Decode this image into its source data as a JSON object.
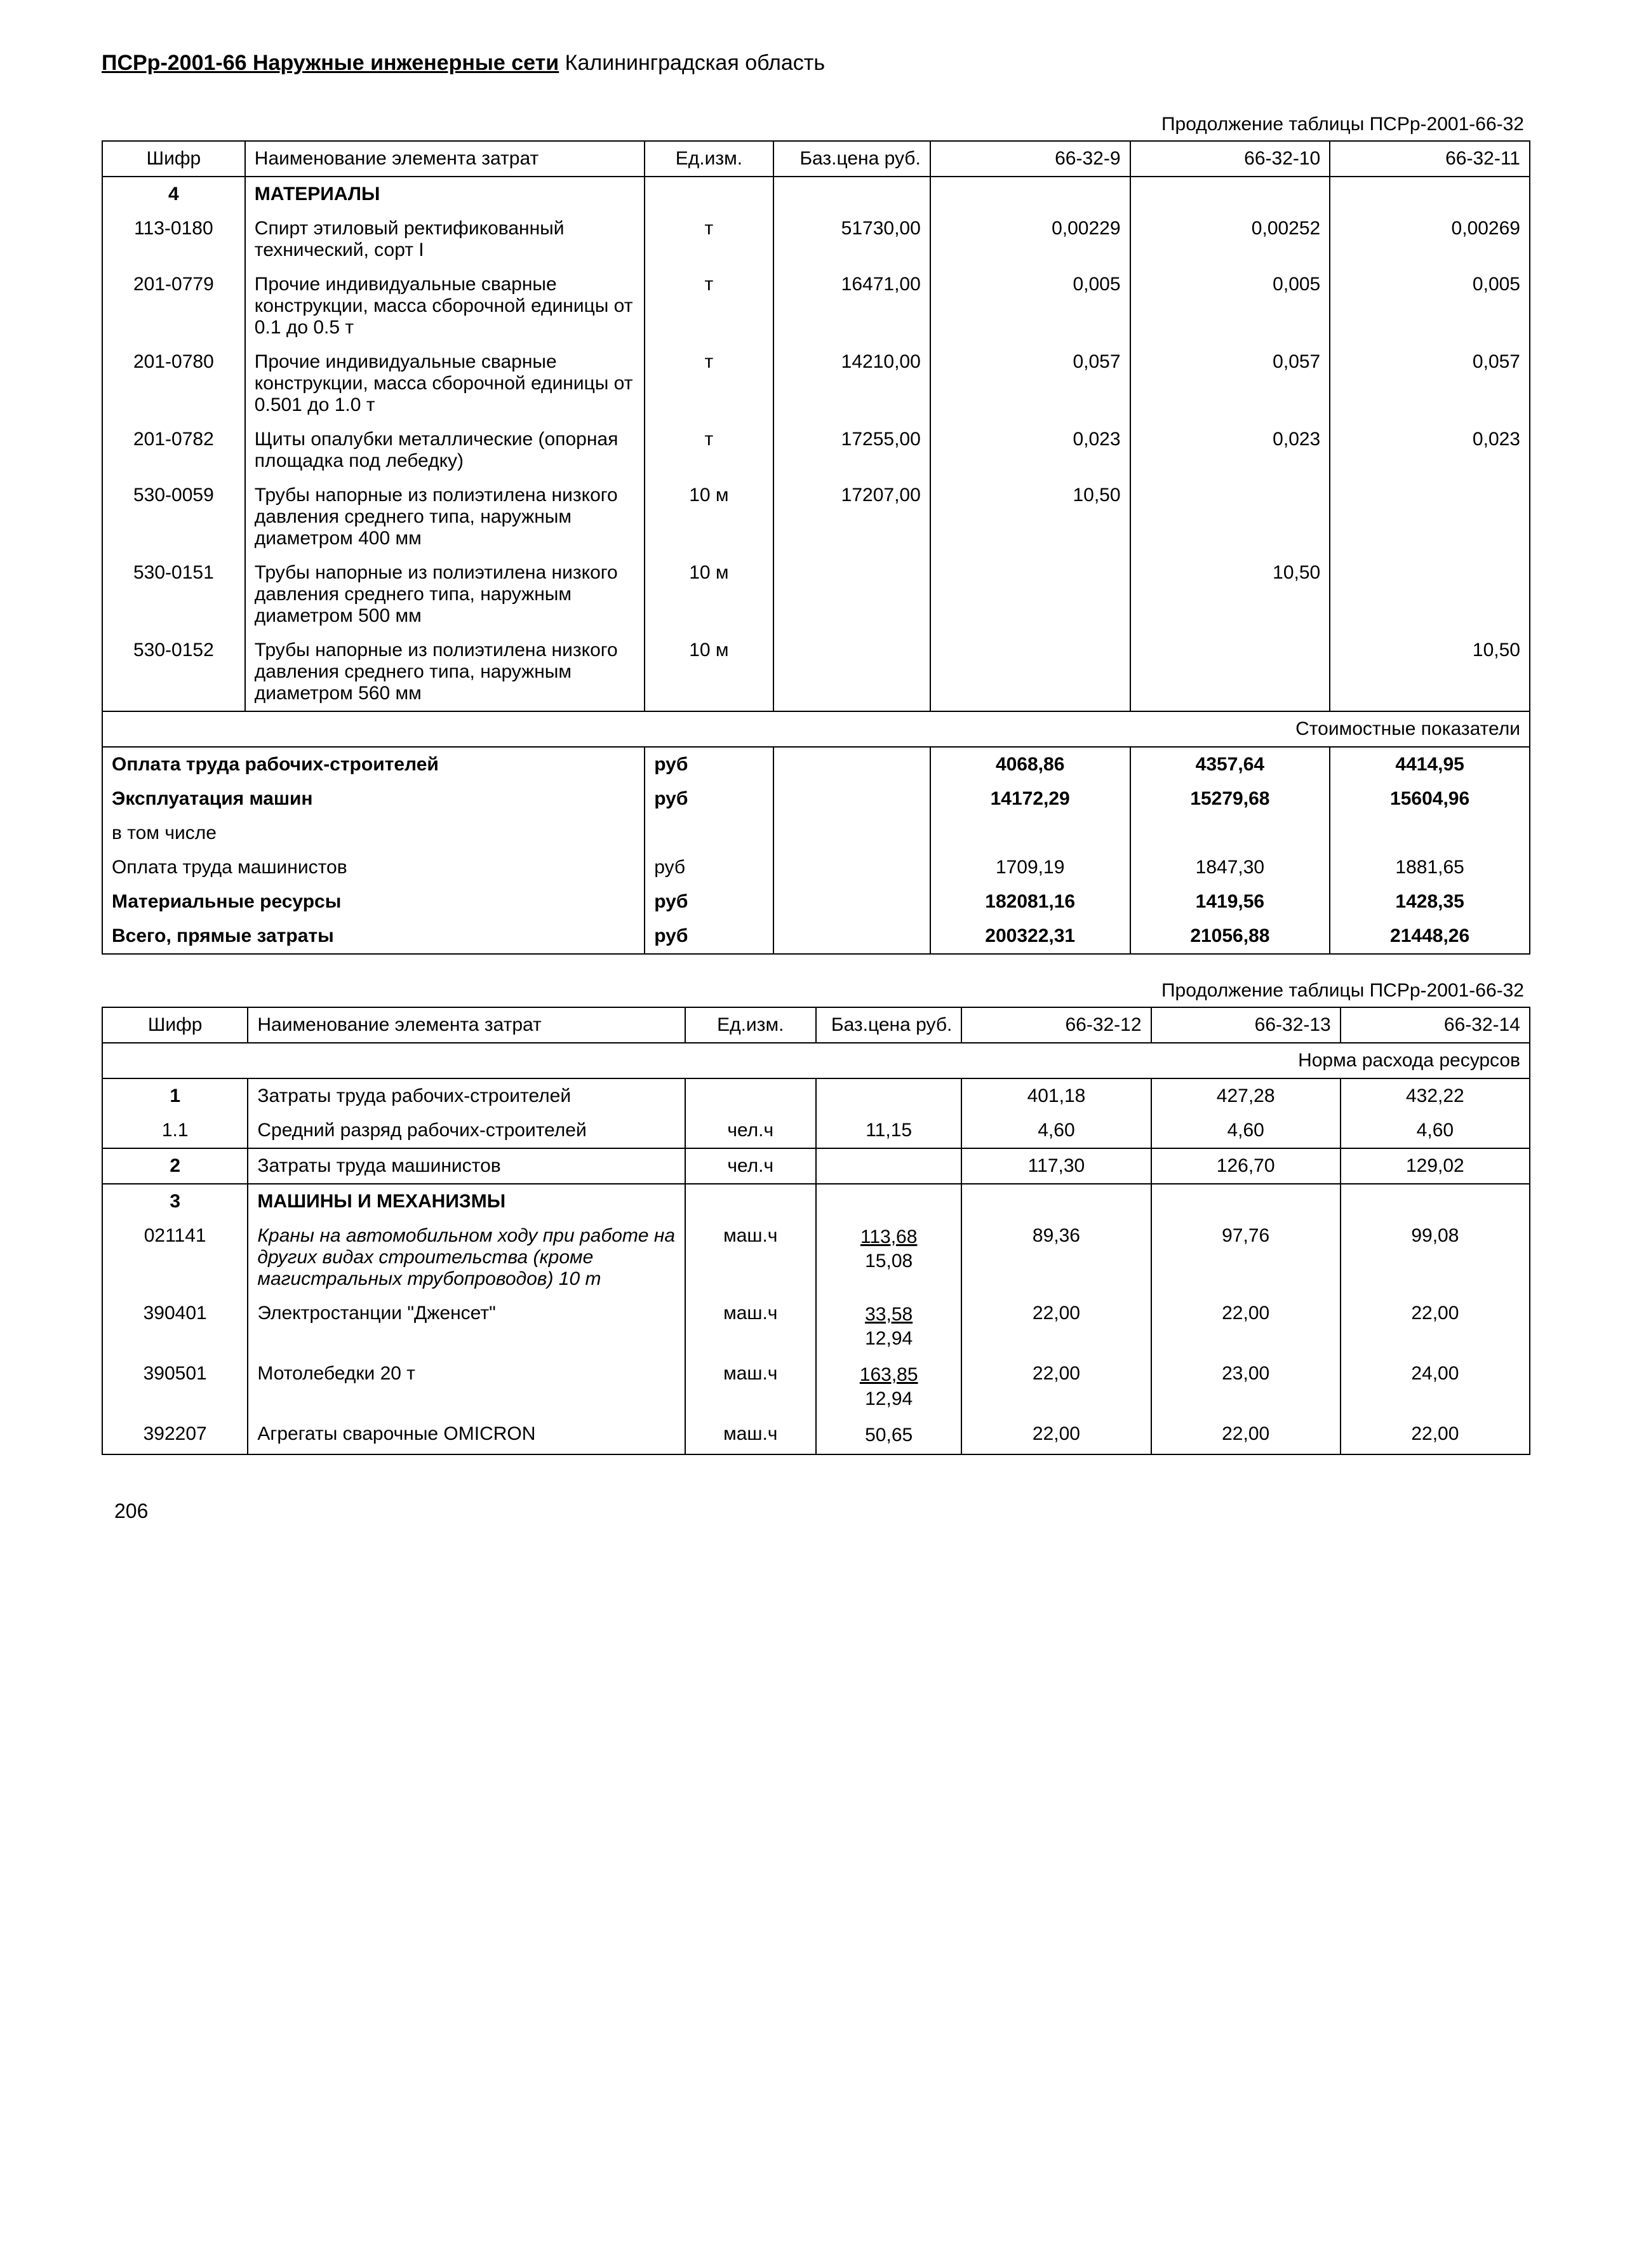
{
  "header": {
    "code": "ПСРр-2001-66 Наружные инженерные сети",
    "region": " Калининградская область"
  },
  "table1": {
    "continuation": "Продолжение таблицы ПСРр-2001-66-32",
    "headers": {
      "code": "Шифр",
      "name": "Наименование элемента затрат",
      "unit": "Ед.изм.",
      "price": "Баз.цена руб.",
      "c1": "66-32-9",
      "c2": "66-32-10",
      "c3": "66-32-11"
    },
    "section": {
      "num": "4",
      "title": "МАТЕРИАЛЫ"
    },
    "rows": [
      {
        "code": "113-0180",
        "name": "Спирт этиловый ректификованный технический, сорт I",
        "unit": "т",
        "price": "51730,00",
        "v1": "0,00229",
        "v2": "0,00252",
        "v3": "0,00269"
      },
      {
        "code": "201-0779",
        "name": "Прочие индивидуальные сварные конструкции, масса сборочной единицы от 0.1 до 0.5 т",
        "unit": "т",
        "price": "16471,00",
        "v1": "0,005",
        "v2": "0,005",
        "v3": "0,005"
      },
      {
        "code": "201-0780",
        "name": "Прочие индивидуальные сварные конструкции, масса сборочной единицы от 0.501 до 1.0 т",
        "unit": "т",
        "price": "14210,00",
        "v1": "0,057",
        "v2": "0,057",
        "v3": "0,057"
      },
      {
        "code": "201-0782",
        "name": "Щиты опалубки металлические (опорная площадка под лебедку)",
        "unit": "т",
        "price": "17255,00",
        "v1": "0,023",
        "v2": "0,023",
        "v3": "0,023"
      },
      {
        "code": "530-0059",
        "name": "Трубы напорные из полиэтилена низкого давления среднего типа, наружным диаметром 400 мм",
        "unit": "10 м",
        "price": "17207,00",
        "v1": "10,50",
        "v2": "",
        "v3": ""
      },
      {
        "code": "530-0151",
        "name": "Трубы напорные из полиэтилена низкого давления среднего типа, наружным диаметром 500 мм",
        "unit": "10 м",
        "price": "",
        "v1": "",
        "v2": "10,50",
        "v3": ""
      },
      {
        "code": "530-0152",
        "name": "Трубы напорные из полиэтилена низкого давления среднего типа, наружным диаметром 560 мм",
        "unit": "10 м",
        "price": "",
        "v1": "",
        "v2": "",
        "v3": "10,50"
      }
    ],
    "costHeader": "Стоимостные показатели",
    "summary": [
      {
        "label": "Оплата труда рабочих-строителей",
        "unit": "руб",
        "v1": "4068,86",
        "v2": "4357,64",
        "v3": "4414,95",
        "bold": true
      },
      {
        "label": "Эксплуатация машин",
        "unit": "руб",
        "v1": "14172,29",
        "v2": "15279,68",
        "v3": "15604,96",
        "bold": true
      },
      {
        "label": "в том числе",
        "unit": "",
        "v1": "",
        "v2": "",
        "v3": "",
        "bold": false
      },
      {
        "label": "Оплата труда машинистов",
        "unit": "руб",
        "v1": "1709,19",
        "v2": "1847,30",
        "v3": "1881,65",
        "bold": false
      },
      {
        "label": "Материальные ресурсы",
        "unit": "руб",
        "v1": "182081,16",
        "v2": "1419,56",
        "v3": "1428,35",
        "bold": true
      },
      {
        "label": "Всего, прямые затраты",
        "unit": "руб",
        "v1": "200322,31",
        "v2": "21056,88",
        "v3": "21448,26",
        "bold": true
      }
    ]
  },
  "table2": {
    "continuation": "Продолжение таблицы ПСРр-2001-66-32",
    "headers": {
      "code": "Шифр",
      "name": "Наименование элемента затрат",
      "unit": "Ед.изм.",
      "price": "Баз.цена руб.",
      "c1": "66-32-12",
      "c2": "66-32-13",
      "c3": "66-32-14"
    },
    "normHeader": "Норма расхода ресурсов",
    "rows1": [
      {
        "code": "1",
        "bold": true,
        "name": "Затраты труда рабочих-строителей",
        "unit": "",
        "price": "",
        "v1": "401,18",
        "v2": "427,28",
        "v3": "432,22"
      },
      {
        "code": "1.1",
        "bold": false,
        "name": "Средний разряд рабочих-строителей",
        "unit": "чел.ч",
        "price": "11,15",
        "v1": "4,60",
        "v2": "4,60",
        "v3": "4,60"
      }
    ],
    "row2": {
      "code": "2",
      "name": "Затраты труда машинистов",
      "unit": "чел.ч",
      "price": "",
      "v1": "117,30",
      "v2": "126,70",
      "v3": "129,02"
    },
    "section3": {
      "num": "3",
      "title": "МАШИНЫ И МЕХАНИЗМЫ"
    },
    "rows3": [
      {
        "code": "021141",
        "name": "Краны на автомобильном ходу при работе на других видах строительства (кроме магистральных трубопроводов) 10 т",
        "italic": true,
        "unit": "маш.ч",
        "priceTop": "113,68",
        "priceBot": "15,08",
        "v1": "89,36",
        "v2": "97,76",
        "v3": "99,08"
      },
      {
        "code": "390401",
        "name": "Электростанции \"Дженсет\"",
        "italic": false,
        "unit": "маш.ч",
        "priceTop": "33,58",
        "priceBot": "12,94",
        "v1": "22,00",
        "v2": "22,00",
        "v3": "22,00"
      },
      {
        "code": "390501",
        "name": "Мотолебедки 20 т",
        "italic": false,
        "unit": "маш.ч",
        "priceTop": "163,85",
        "priceBot": "12,94",
        "v1": "22,00",
        "v2": "23,00",
        "v3": "24,00"
      },
      {
        "code": "392207",
        "name": "Агрегаты сварочные OMICRON",
        "italic": false,
        "unit": "маш.ч",
        "priceTop": "50,65",
        "priceBot": "",
        "v1": "22,00",
        "v2": "22,00",
        "v3": "22,00"
      }
    ]
  },
  "pageNumber": "206"
}
